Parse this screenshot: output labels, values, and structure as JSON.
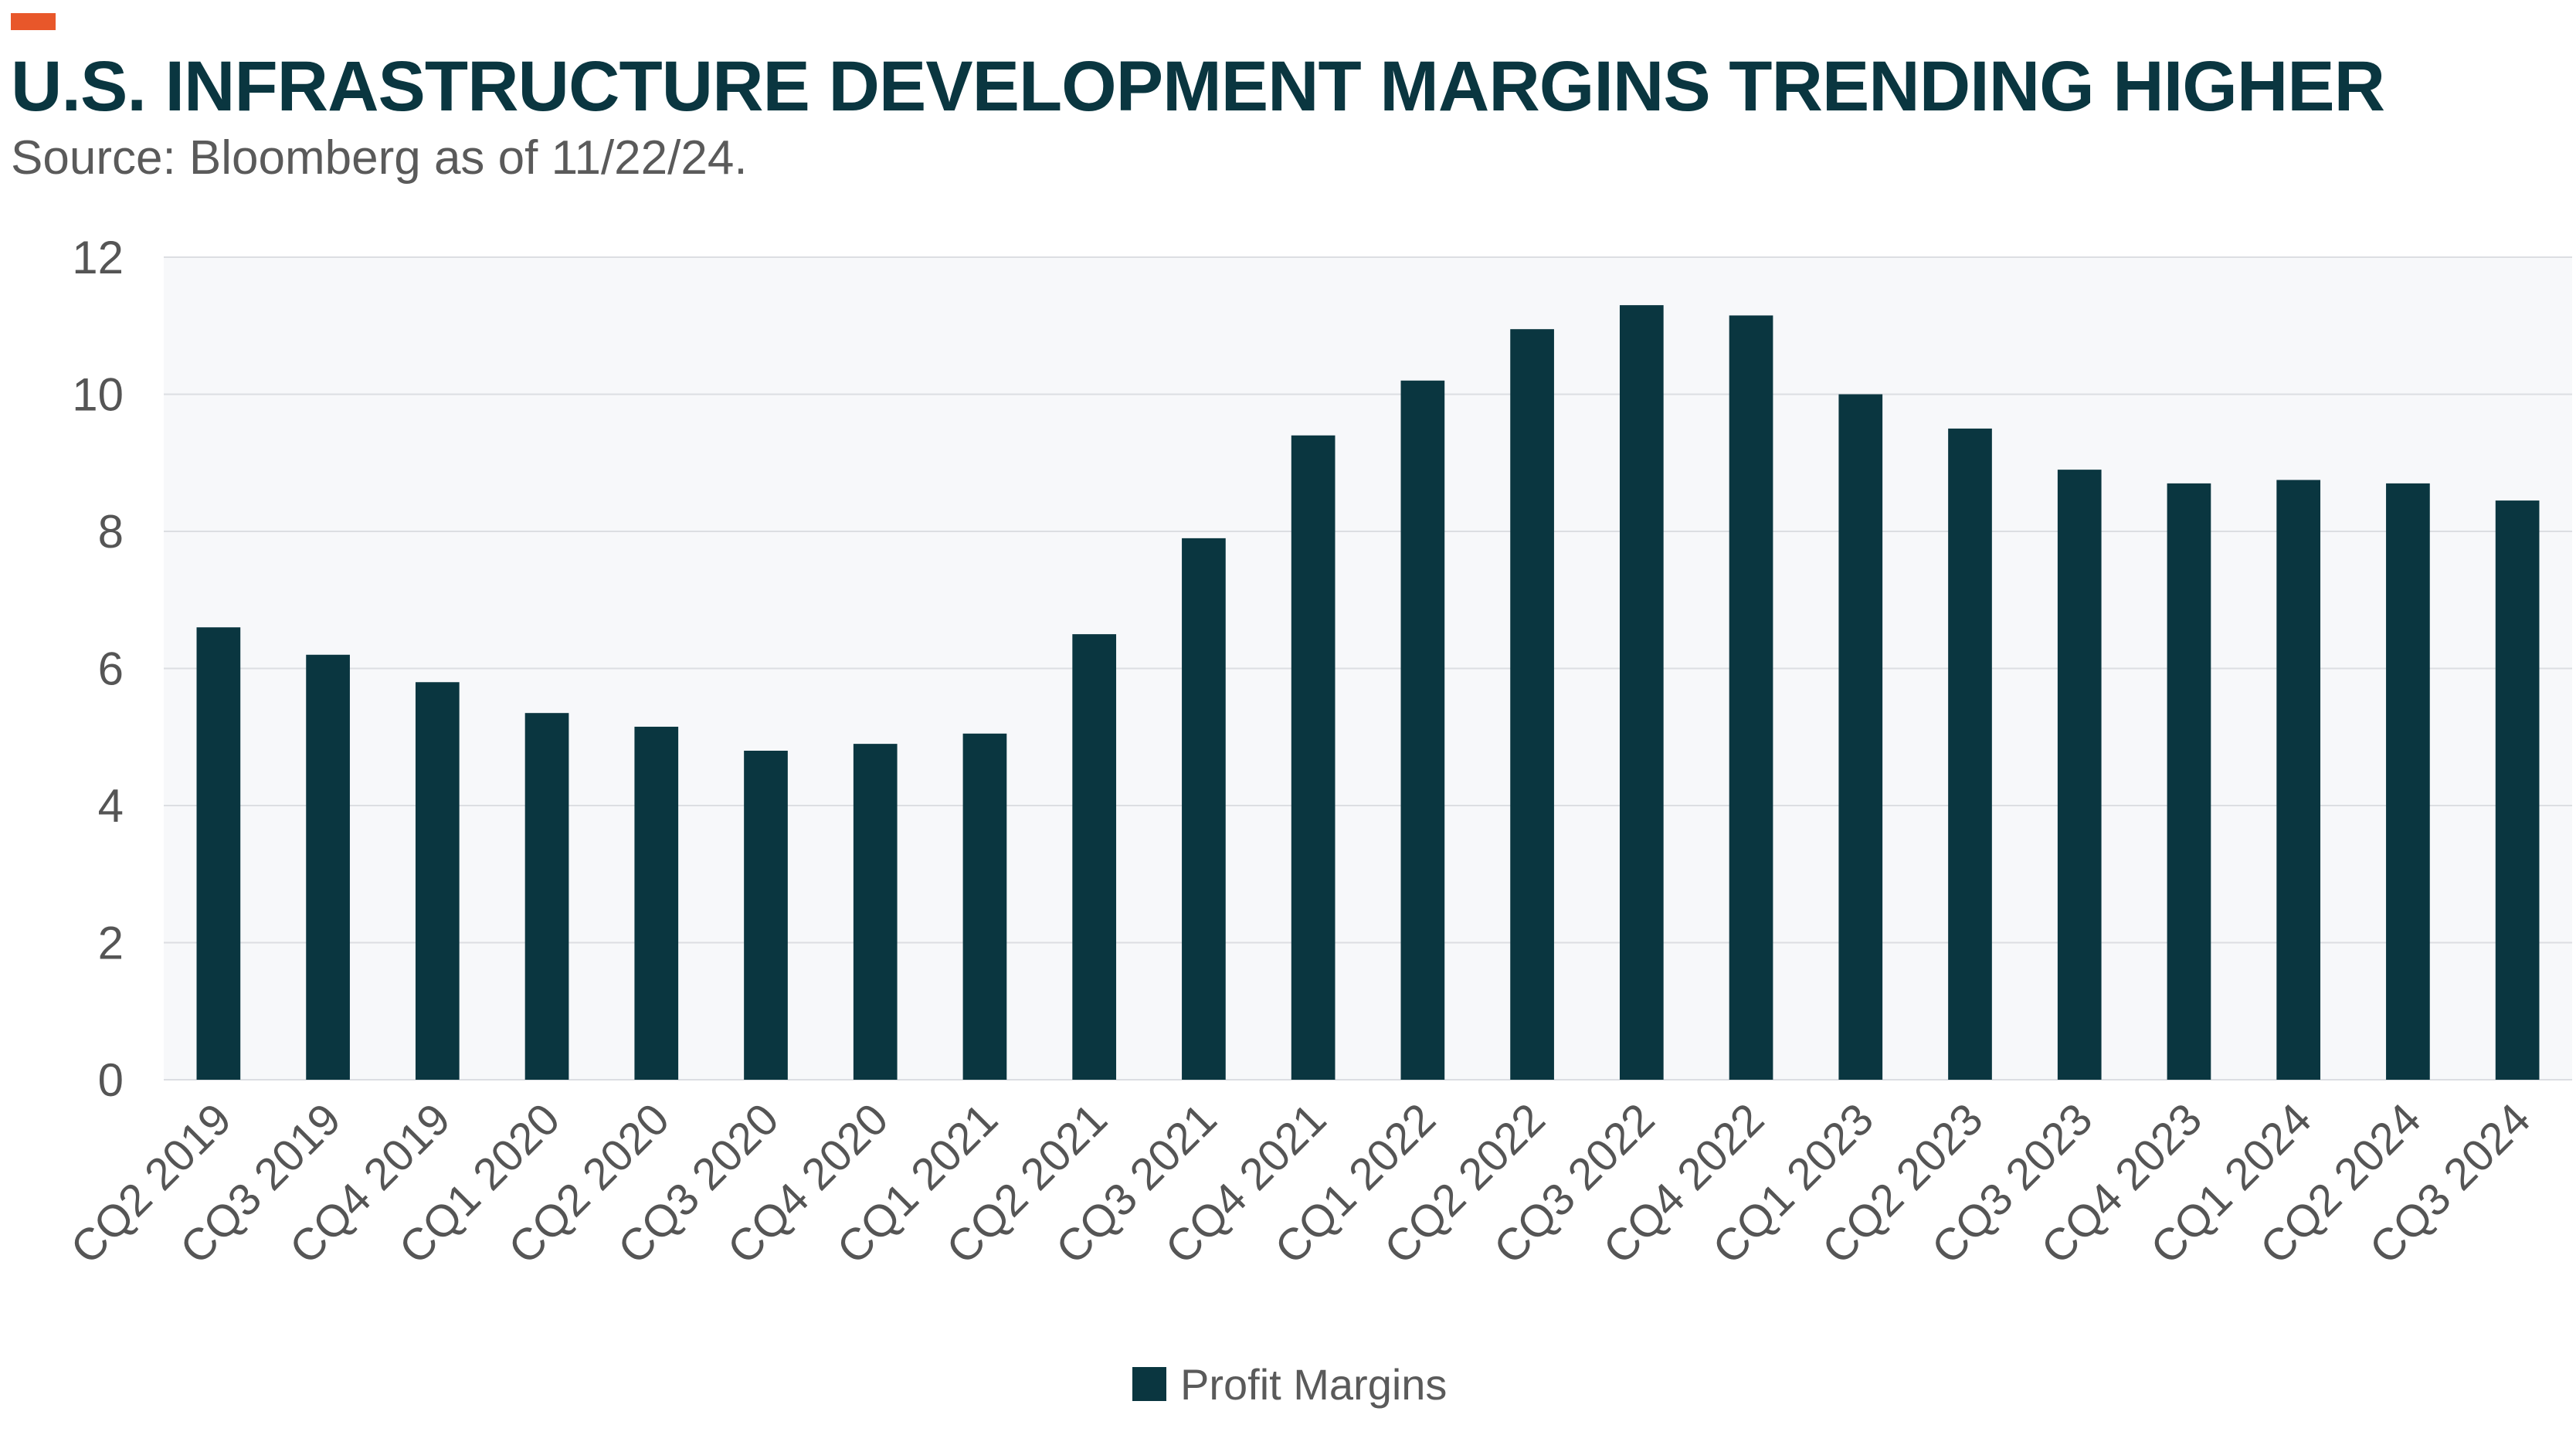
{
  "header": {
    "title": "U.S. INFRASTRUCTURE DEVELOPMENT MARGINS TRENDING HIGHER",
    "subtitle": "Source: Bloomberg as of 11/22/24."
  },
  "colors": {
    "accent": "#e8572a",
    "title": "#0a3640",
    "bar": "#0a3640",
    "plot_background": "#f7f8fa",
    "gridline": "#dcdee2",
    "tick_text": "#555555"
  },
  "chart_data": {
    "type": "bar",
    "title": "U.S. INFRASTRUCTURE DEVELOPMENT MARGINS TRENDING HIGHER",
    "subtitle": "Source: Bloomberg as of 11/22/24.",
    "xlabel": "",
    "ylabel": "",
    "ylim": [
      0,
      12
    ],
    "yticks": [
      0,
      2,
      4,
      6,
      8,
      10,
      12
    ],
    "grid": true,
    "legend": "bottom",
    "categories": [
      "CQ2 2019",
      "CQ3 2019",
      "CQ4 2019",
      "CQ1 2020",
      "CQ2 2020",
      "CQ3 2020",
      "CQ4 2020",
      "CQ1 2021",
      "CQ2 2021",
      "CQ3 2021",
      "CQ4 2021",
      "CQ1 2022",
      "CQ2 2022",
      "CQ3 2022",
      "CQ4 2022",
      "CQ1 2023",
      "CQ2 2023",
      "CQ3 2023",
      "CQ4 2023",
      "CQ1 2024",
      "CQ2 2024",
      "CQ3 2024"
    ],
    "series": [
      {
        "name": "Profit Margins",
        "values": [
          6.6,
          6.2,
          5.8,
          5.35,
          5.15,
          4.8,
          4.9,
          5.05,
          6.5,
          7.9,
          9.4,
          10.2,
          10.95,
          11.3,
          11.15,
          10.0,
          9.5,
          8.9,
          8.7,
          8.75,
          8.7,
          8.45
        ]
      }
    ]
  }
}
